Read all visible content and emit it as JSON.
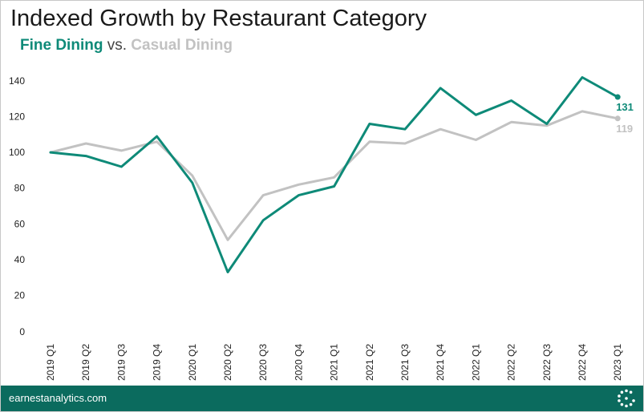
{
  "colors": {
    "fine_dining": "#0e8a78",
    "casual_dining": "#c2c2c2",
    "footer_bg": "#0b6b5e"
  },
  "footer": {
    "site": "earnestanalytics.com",
    "logo_icon": "dotted-circle-logo-icon"
  },
  "chart_data": {
    "type": "line",
    "title": "Indexed Growth by Restaurant Category",
    "subtitle": {
      "series1": "Fine Dining",
      "separator": "vs.",
      "series2": "Casual Dining"
    },
    "categories": [
      "2019 Q1",
      "2019 Q2",
      "2019 Q3",
      "2019 Q4",
      "2020 Q1",
      "2020 Q2",
      "2020 Q3",
      "2020 Q4",
      "2021 Q1",
      "2021 Q2",
      "2021 Q3",
      "2021 Q4",
      "2022 Q1",
      "2022 Q2",
      "2022 Q3",
      "2022 Q4",
      "2023 Q1"
    ],
    "series": [
      {
        "name": "Fine Dining",
        "values": [
          100,
          98,
          92,
          109,
          83,
          33,
          62,
          76,
          81,
          116,
          113,
          136,
          121,
          129,
          116,
          142,
          131
        ],
        "end_label": "131"
      },
      {
        "name": "Casual Dining",
        "values": [
          100,
          105,
          101,
          106,
          87,
          51,
          76,
          82,
          86,
          106,
          105,
          113,
          107,
          117,
          115,
          123,
          119
        ],
        "end_label": "119"
      }
    ],
    "yticks": [
      "0",
      "20",
      "40",
      "60",
      "80",
      "100",
      "120",
      "140"
    ],
    "ylim": [
      0,
      150
    ],
    "grid": false,
    "xlabel": "",
    "ylabel": ""
  }
}
